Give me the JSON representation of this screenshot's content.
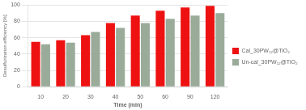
{
  "chart_data": {
    "type": "bar",
    "categories": [
      "10",
      "20",
      "30",
      "40",
      "50",
      "60",
      "90",
      "120"
    ],
    "series": [
      {
        "name": "Cal_30PW₁₂@TiO₂",
        "color": "#ee1111",
        "values": [
          55,
          57,
          63,
          78,
          87,
          93,
          97,
          99
        ]
      },
      {
        "name": "Un-cal_30PW₁₂@TiO₂",
        "color": "#9aab9a",
        "values": [
          52,
          54,
          67,
          72,
          78,
          83,
          87,
          90
        ]
      }
    ],
    "xlabel": "Time (min)",
    "ylabel": "Desulfurization efficiency [%]",
    "ylim": [
      0,
      100
    ],
    "yticks": [
      0,
      20,
      40,
      60,
      80,
      100
    ],
    "grid": true,
    "legend": "right"
  }
}
